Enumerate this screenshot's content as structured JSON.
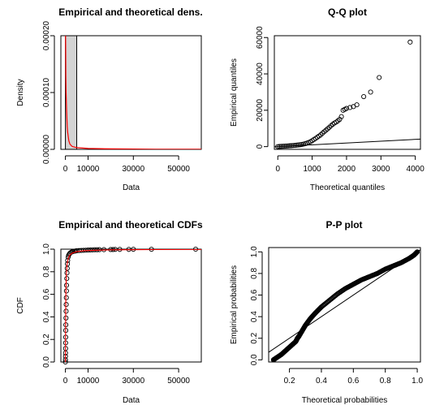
{
  "chart_data": [
    {
      "id": "density",
      "type": "bar",
      "title": "Empirical and theoretical dens.",
      "xlabel": "Data",
      "ylabel": "Density",
      "xlim": [
        -2000,
        60000
      ],
      "ylim": [
        0,
        0.0002
      ],
      "x_ticks": [
        0,
        10000,
        30000,
        50000
      ],
      "x_tick_labels": [
        "0",
        "10000",
        "30000",
        "50000"
      ],
      "y_ticks": [
        0,
        0.0001,
        0.0002
      ],
      "y_tick_labels": [
        "0.00000",
        "0.00010",
        "0.00020"
      ],
      "histogram": {
        "bins": [
          [
            0,
            5000
          ]
        ],
        "densities": [
          0.0002
        ],
        "fill": "#d3d3d3"
      },
      "density_curve": {
        "color": "#ff0000",
        "x": [
          50,
          100,
          200,
          300,
          500,
          800,
          1000,
          1500,
          2000,
          3000,
          5000,
          10000,
          20000,
          40000,
          60000
        ],
        "y": [
          0.00021,
          0.00018,
          0.00013,
          0.0001,
          7e-05,
          4e-05,
          3e-05,
          1.5e-05,
          9e-06,
          5e-06,
          3e-06,
          1.5e-06,
          8e-07,
          3e-07,
          1e-07
        ]
      }
    },
    {
      "id": "qq",
      "type": "scatter",
      "title": "Q-Q plot",
      "xlabel": "Theoretical quantiles",
      "ylabel": "Empirical quantiles",
      "xlim": [
        -100,
        4150
      ],
      "ylim": [
        -1500,
        61000
      ],
      "x_ticks": [
        0,
        1000,
        2000,
        3000,
        4000
      ],
      "x_tick_labels": [
        "0",
        "1000",
        "2000",
        "3000",
        "4000"
      ],
      "y_ticks": [
        0,
        20000,
        40000,
        60000
      ],
      "y_tick_labels": [
        "0",
        "20000",
        "40000",
        "60000"
      ],
      "reference_line": {
        "x": [
          -100,
          4150
        ],
        "y": [
          -100,
          4150
        ]
      },
      "points": {
        "x": [
          0,
          50,
          100,
          150,
          200,
          250,
          300,
          350,
          400,
          450,
          500,
          550,
          600,
          650,
          700,
          750,
          800,
          850,
          900,
          950,
          1000,
          1050,
          1100,
          1150,
          1200,
          1250,
          1300,
          1350,
          1400,
          1450,
          1500,
          1550,
          1600,
          1650,
          1700,
          1750,
          1800,
          1850,
          1900,
          1950,
          2000,
          2100,
          2200,
          2300,
          2500,
          2700,
          2950,
          3850
        ],
        "y": [
          0,
          100,
          150,
          200,
          260,
          320,
          390,
          460,
          540,
          620,
          710,
          800,
          920,
          1050,
          1200,
          1400,
          1650,
          1950,
          2300,
          2700,
          3300,
          3900,
          4500,
          5200,
          5800,
          6500,
          7400,
          8200,
          9000,
          9800,
          10600,
          11500,
          12300,
          13000,
          13500,
          14200,
          15000,
          16500,
          20000,
          20500,
          21000,
          21500,
          22000,
          23000,
          27500,
          30000,
          38000,
          57500
        ]
      }
    },
    {
      "id": "cdf",
      "type": "scatter",
      "title": "Empirical and theoretical CDFs",
      "xlabel": "Data",
      "ylabel": "CDF",
      "xlim": [
        -2000,
        60000
      ],
      "ylim": [
        0,
        1
      ],
      "x_ticks": [
        0,
        10000,
        30000,
        50000
      ],
      "x_tick_labels": [
        "0",
        "10000",
        "30000",
        "50000"
      ],
      "y_ticks": [
        0,
        0.2,
        0.4,
        0.6,
        0.8,
        1
      ],
      "y_tick_labels": [
        "0.0",
        "0.2",
        "0.4",
        "0.6",
        "0.8",
        "1.0"
      ],
      "theoretical_curve": {
        "color": "#ff0000",
        "x": [
          0,
          100,
          200,
          400,
          700,
          1000,
          1500,
          2000,
          3000,
          5000,
          8000,
          12000,
          20000,
          40000,
          60000
        ],
        "y": [
          0,
          0.4,
          0.6,
          0.77,
          0.86,
          0.9,
          0.93,
          0.95,
          0.965,
          0.978,
          0.986,
          0.99,
          0.994,
          0.997,
          0.998
        ]
      },
      "points": {
        "x": [
          0,
          20,
          40,
          60,
          80,
          100,
          130,
          160,
          200,
          250,
          300,
          350,
          400,
          450,
          500,
          600,
          700,
          800,
          900,
          1000,
          1200,
          1400,
          1700,
          2000,
          2500,
          3000,
          3500,
          4000,
          4500,
          5000,
          6000,
          7000,
          8000,
          9000,
          10000,
          11000,
          12000,
          13000,
          14000,
          15000,
          17000,
          20000,
          21000,
          22000,
          24000,
          28000,
          30000,
          38000,
          57500
        ],
        "y": [
          0.0,
          0.02,
          0.05,
          0.08,
          0.12,
          0.17,
          0.22,
          0.28,
          0.33,
          0.39,
          0.45,
          0.51,
          0.57,
          0.63,
          0.68,
          0.74,
          0.79,
          0.83,
          0.87,
          0.9,
          0.93,
          0.945,
          0.955,
          0.965,
          0.972,
          0.977,
          0.98,
          0.982,
          0.984,
          0.986,
          0.988,
          0.989,
          0.99,
          0.991,
          0.992,
          0.993,
          0.994,
          0.995,
          0.995,
          0.996,
          0.996,
          0.997,
          0.997,
          0.998,
          0.998,
          0.998,
          0.999,
          0.999,
          1.0
        ]
      }
    },
    {
      "id": "pp",
      "type": "scatter",
      "title": "P-P plot",
      "xlabel": "Theoretical probabilities",
      "ylabel": "Empirical probabilities",
      "xlim": [
        0.07,
        1.02
      ],
      "ylim": [
        -0.02,
        1.04
      ],
      "x_ticks": [
        0.2,
        0.4,
        0.6,
        0.8,
        1.0
      ],
      "x_tick_labels": [
        "0.2",
        "0.4",
        "0.6",
        "0.8",
        "1.0"
      ],
      "y_ticks": [
        0,
        0.2,
        0.4,
        0.6,
        0.8,
        1.0
      ],
      "y_tick_labels": [
        "0.0",
        "0.2",
        "0.4",
        "0.6",
        "0.8",
        "1.0"
      ],
      "reference_line": {
        "x": [
          0,
          1.05
        ],
        "y": [
          0,
          1.05
        ]
      },
      "curve": {
        "x": [
          0.1,
          0.12,
          0.15,
          0.18,
          0.21,
          0.24,
          0.25,
          0.26,
          0.28,
          0.3,
          0.33,
          0.36,
          0.4,
          0.45,
          0.5,
          0.55,
          0.6,
          0.65,
          0.7,
          0.75,
          0.8,
          0.85,
          0.9,
          0.95,
          0.98,
          1.0
        ],
        "y": [
          0.0,
          0.02,
          0.05,
          0.09,
          0.13,
          0.17,
          0.2,
          0.22,
          0.27,
          0.32,
          0.38,
          0.43,
          0.49,
          0.55,
          0.61,
          0.66,
          0.7,
          0.74,
          0.77,
          0.8,
          0.84,
          0.87,
          0.9,
          0.94,
          0.97,
          1.0
        ]
      }
    }
  ]
}
